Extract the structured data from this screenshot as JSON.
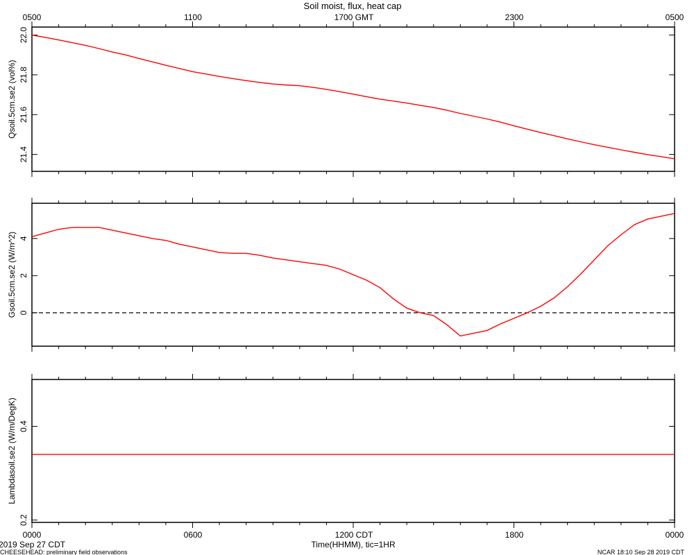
{
  "chart_data": {
    "title": "Soil moist, flux, heat cap",
    "top_axis": {
      "tick_labels": [
        "0500",
        "1100",
        "1700 GMT",
        "2300",
        "0500"
      ]
    },
    "bottom_axis": {
      "tick_labels": [
        "0000",
        "0600",
        "1200 CDT",
        "1800",
        "0000"
      ],
      "label": "Time(HHMM), tic=1HR",
      "range_hours": [
        0,
        24
      ]
    },
    "footer": {
      "start_date": "2019 Sep 27 CDT",
      "project": "CHEESEHEAD: preliminary field observations",
      "credit": "NCAR 18:10 Sep 28 2019 CDT"
    },
    "line_color": "#ff0000",
    "panels": [
      {
        "type": "line",
        "ylabel": "Qsoil.5cm.se2 (vol%)",
        "ylim": [
          21.315,
          22.04
        ],
        "yticks": [
          21.4,
          21.6,
          21.8,
          22.0
        ],
        "yticklabels": [
          "21.4",
          "21.6",
          "21.8",
          "22.0"
        ],
        "zero_line": false,
        "series": {
          "x": [
            0,
            0.5,
            1,
            1.5,
            2,
            2.5,
            3,
            3.5,
            4,
            4.5,
            5,
            5.5,
            6,
            6.5,
            7,
            7.5,
            8,
            8.5,
            9,
            9.5,
            10,
            10.5,
            11,
            11.5,
            12,
            12.5,
            13,
            13.5,
            14,
            14.5,
            15,
            15.5,
            16,
            16.5,
            17,
            17.5,
            18,
            18.5,
            19,
            19.5,
            20,
            20.5,
            21,
            21.5,
            22,
            22.5,
            23,
            23.5,
            24
          ],
          "y": [
            22.0,
            21.988,
            21.975,
            21.962,
            21.948,
            21.932,
            21.915,
            21.9,
            21.882,
            21.865,
            21.848,
            21.832,
            21.816,
            21.804,
            21.792,
            21.781,
            21.771,
            21.762,
            21.754,
            21.749,
            21.745,
            21.737,
            21.727,
            21.715,
            21.703,
            21.69,
            21.678,
            21.668,
            21.658,
            21.647,
            21.636,
            21.622,
            21.606,
            21.592,
            21.578,
            21.562,
            21.544,
            21.527,
            21.51,
            21.494,
            21.478,
            21.463,
            21.449,
            21.436,
            21.423,
            21.411,
            21.399,
            21.389,
            21.378
          ]
        }
      },
      {
        "type": "line",
        "ylabel": "Gsoil.5cm.se2 (W/m^2)",
        "ylim": [
          -1.8,
          5.9
        ],
        "yticks": [
          0,
          2,
          4
        ],
        "yticklabels": [
          "0",
          "2",
          "4"
        ],
        "zero_line": true,
        "series": {
          "x": [
            0,
            0.5,
            1,
            1.5,
            2,
            2.5,
            3,
            3.5,
            4,
            4.5,
            5,
            5.5,
            6,
            6.5,
            7,
            7.5,
            8,
            8.5,
            9,
            9.5,
            10,
            10.5,
            11,
            11.5,
            12,
            12.5,
            13,
            13.5,
            14,
            14.5,
            15,
            15.5,
            16,
            16.5,
            17,
            17.5,
            18,
            18.5,
            19,
            19.5,
            20,
            20.5,
            21,
            21.5,
            22,
            22.5,
            23,
            23.5,
            24
          ],
          "y": [
            4.1,
            4.3,
            4.5,
            4.6,
            4.6,
            4.6,
            4.45,
            4.3,
            4.15,
            4.0,
            3.9,
            3.7,
            3.55,
            3.4,
            3.25,
            3.2,
            3.2,
            3.1,
            2.95,
            2.85,
            2.75,
            2.65,
            2.55,
            2.35,
            2.05,
            1.75,
            1.35,
            0.75,
            0.25,
            0.0,
            -0.15,
            -0.65,
            -1.25,
            -1.1,
            -0.95,
            -0.6,
            -0.3,
            0.0,
            0.35,
            0.8,
            1.4,
            2.1,
            2.85,
            3.6,
            4.2,
            4.75,
            5.05,
            5.2,
            5.35
          ]
        }
      },
      {
        "type": "line",
        "ylabel": "Lambdasoil.se2 (W/m/DegK)",
        "ylim": [
          0.195,
          0.5
        ],
        "yticks": [
          0.2,
          0.4
        ],
        "yticklabels": [
          "0.2",
          "0.4"
        ],
        "zero_line": false,
        "series": {
          "x": [
            0,
            24
          ],
          "y": [
            0.34,
            0.34
          ]
        }
      }
    ]
  }
}
